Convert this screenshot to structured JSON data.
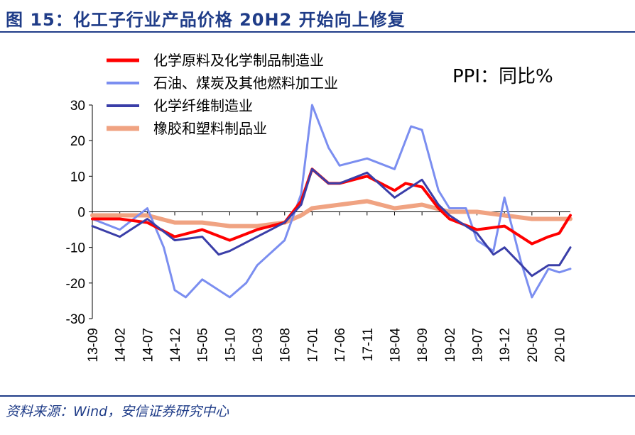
{
  "header": {
    "title": "图 15：化工子行业产品价格 20H2 开始向上修复"
  },
  "footer": {
    "source": "资料来源：Wind，安信证券研究中心"
  },
  "chart_data": {
    "type": "line",
    "annotation": "PPI：同比%",
    "ylim": [
      -30,
      30
    ],
    "yticks": [
      30,
      20,
      10,
      0,
      -10,
      -20,
      -30
    ],
    "xticks": [
      "13-09",
      "14-02",
      "14-07",
      "14-12",
      "15-05",
      "15-10",
      "16-03",
      "16-08",
      "17-01",
      "17-06",
      "17-11",
      "18-04",
      "18-09",
      "19-02",
      "19-07",
      "19-12",
      "20-05",
      "20-10"
    ],
    "grid": false,
    "legend": "top-left",
    "series": [
      {
        "name": "化学原料及化学制品制造业",
        "color": "#ff0000",
        "points": [
          [
            "13-09",
            -2
          ],
          [
            "14-02",
            -2
          ],
          [
            "14-07",
            -3
          ],
          [
            "14-12",
            -7
          ],
          [
            "15-05",
            -5
          ],
          [
            "15-10",
            -8
          ],
          [
            "16-03",
            -5
          ],
          [
            "16-08",
            -3
          ],
          [
            "16-11",
            3
          ],
          [
            "17-01",
            12
          ],
          [
            "17-04",
            8
          ],
          [
            "17-06",
            8
          ],
          [
            "17-11",
            10
          ],
          [
            "18-04",
            6
          ],
          [
            "18-06",
            8
          ],
          [
            "18-09",
            7
          ],
          [
            "18-12",
            1
          ],
          [
            "19-02",
            -2
          ],
          [
            "19-07",
            -5
          ],
          [
            "19-12",
            -4
          ],
          [
            "20-05",
            -9
          ],
          [
            "20-08",
            -7
          ],
          [
            "20-10",
            -6
          ],
          [
            "20-12",
            -1
          ]
        ]
      },
      {
        "name": "石油、煤炭及其他燃料加工业",
        "color": "#7b8ef0",
        "points": [
          [
            "13-09",
            -2
          ],
          [
            "14-02",
            -5
          ],
          [
            "14-07",
            1
          ],
          [
            "14-10",
            -10
          ],
          [
            "14-12",
            -22
          ],
          [
            "15-02",
            -24
          ],
          [
            "15-05",
            -19
          ],
          [
            "15-10",
            -24
          ],
          [
            "16-01",
            -20
          ],
          [
            "16-03",
            -15
          ],
          [
            "16-08",
            -8
          ],
          [
            "16-11",
            5
          ],
          [
            "17-01",
            30
          ],
          [
            "17-04",
            18
          ],
          [
            "17-06",
            13
          ],
          [
            "17-11",
            15
          ],
          [
            "18-04",
            12
          ],
          [
            "18-07",
            24
          ],
          [
            "18-09",
            23
          ],
          [
            "18-12",
            6
          ],
          [
            "19-02",
            1
          ],
          [
            "19-05",
            1
          ],
          [
            "19-07",
            -8
          ],
          [
            "19-10",
            -11
          ],
          [
            "19-12",
            4
          ],
          [
            "20-03",
            -14
          ],
          [
            "20-05",
            -24
          ],
          [
            "20-08",
            -16
          ],
          [
            "20-10",
            -17
          ],
          [
            "20-12",
            -16
          ]
        ]
      },
      {
        "name": "化学纤维制造业",
        "color": "#3a3ea8",
        "points": [
          [
            "13-09",
            -4
          ],
          [
            "14-02",
            -7
          ],
          [
            "14-07",
            -2
          ],
          [
            "14-12",
            -8
          ],
          [
            "15-05",
            -7
          ],
          [
            "15-08",
            -12
          ],
          [
            "15-10",
            -11
          ],
          [
            "16-03",
            -7
          ],
          [
            "16-08",
            -3
          ],
          [
            "16-11",
            2
          ],
          [
            "17-01",
            12
          ],
          [
            "17-04",
            8
          ],
          [
            "17-06",
            8
          ],
          [
            "17-11",
            11
          ],
          [
            "18-04",
            4
          ],
          [
            "18-06",
            6
          ],
          [
            "18-09",
            9
          ],
          [
            "18-12",
            2
          ],
          [
            "19-02",
            -1
          ],
          [
            "19-07",
            -6
          ],
          [
            "19-10",
            -12
          ],
          [
            "19-12",
            -10
          ],
          [
            "20-05",
            -18
          ],
          [
            "20-08",
            -15
          ],
          [
            "20-10",
            -15
          ],
          [
            "20-12",
            -10
          ]
        ]
      },
      {
        "name": "橡胶和塑料制品业",
        "color": "#f0a382",
        "points": [
          [
            "13-09",
            -1
          ],
          [
            "14-02",
            -1
          ],
          [
            "14-07",
            -1
          ],
          [
            "14-12",
            -3
          ],
          [
            "15-05",
            -3
          ],
          [
            "15-10",
            -4
          ],
          [
            "16-03",
            -4
          ],
          [
            "16-08",
            -3
          ],
          [
            "16-11",
            -1
          ],
          [
            "17-01",
            1
          ],
          [
            "17-06",
            2
          ],
          [
            "17-11",
            3
          ],
          [
            "18-04",
            1
          ],
          [
            "18-09",
            2
          ],
          [
            "19-02",
            0
          ],
          [
            "19-07",
            0
          ],
          [
            "19-12",
            -1
          ],
          [
            "20-05",
            -2
          ],
          [
            "20-10",
            -2
          ],
          [
            "20-12",
            -2
          ]
        ]
      }
    ]
  }
}
